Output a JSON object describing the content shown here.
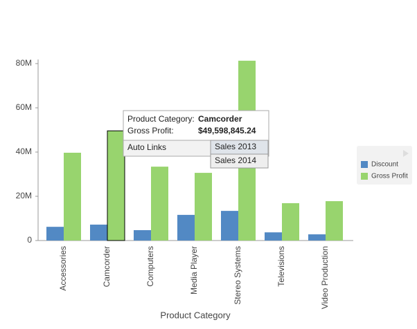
{
  "chart_data": {
    "type": "bar",
    "x_label": "Product Category",
    "categories": [
      "Accessories",
      "Camcorder",
      "Computers",
      "Media Player",
      "Stereo Systems",
      "Televisions",
      "Video Production"
    ],
    "series": [
      {
        "name": "Discount",
        "color": "#5289c4",
        "values": [
          6200000,
          7200000,
          4700000,
          11600000,
          13400000,
          3700000,
          2800000
        ]
      },
      {
        "name": "Gross Profit",
        "color": "#98d46e",
        "values": [
          39700000,
          49598845.24,
          33400000,
          30600000,
          81300000,
          16900000,
          17800000
        ]
      }
    ],
    "ylim": [
      0,
      80000000
    ],
    "yticks": [
      {
        "value": 0,
        "label": "0"
      },
      {
        "value": 20000000,
        "label": "20M"
      },
      {
        "value": 40000000,
        "label": "40M"
      },
      {
        "value": 60000000,
        "label": "60M"
      },
      {
        "value": 80000000,
        "label": "80M"
      }
    ],
    "grid": false,
    "legend": "right",
    "highlight": {
      "series": 1,
      "index": 1
    },
    "tooltip": {
      "rows": [
        {
          "label": "Product Category:",
          "value": "Camcorder"
        },
        {
          "label": "Gross Profit:",
          "value": "$49,598,845.24"
        }
      ],
      "menu": "Auto Links",
      "submenu": [
        "Sales 2013",
        "Sales 2014"
      ]
    }
  }
}
